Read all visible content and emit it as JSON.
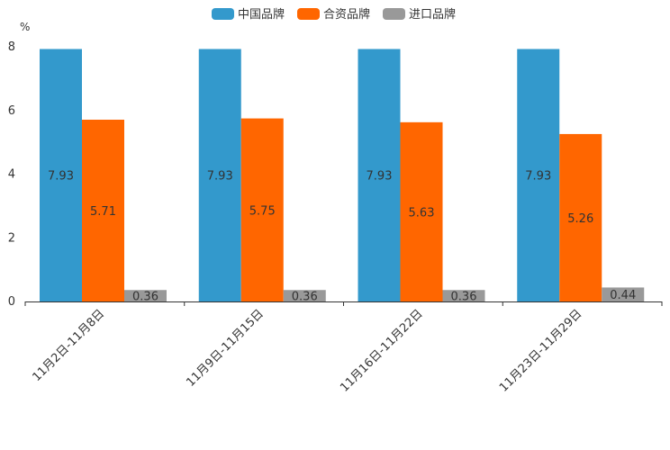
{
  "chart_data": {
    "type": "bar",
    "unit_label": "%",
    "categories": [
      "11月2日-11月8日",
      "11月9日-11月15日",
      "11月16日-11月22日",
      "11月23日-11月29日"
    ],
    "series": [
      {
        "name": "中国品牌",
        "color": "#3399cc",
        "values": [
          7.93,
          7.93,
          7.93,
          7.93
        ]
      },
      {
        "name": "合资品牌",
        "color": "#ff6600",
        "values": [
          5.71,
          5.75,
          5.63,
          5.26
        ]
      },
      {
        "name": "进口品牌",
        "color": "#999999",
        "values": [
          0.36,
          0.36,
          0.36,
          0.44
        ]
      }
    ],
    "ylim": [
      0,
      8
    ],
    "yticks": [
      0,
      2,
      4,
      6,
      8
    ],
    "legend_position": "top-center",
    "grid": false
  }
}
